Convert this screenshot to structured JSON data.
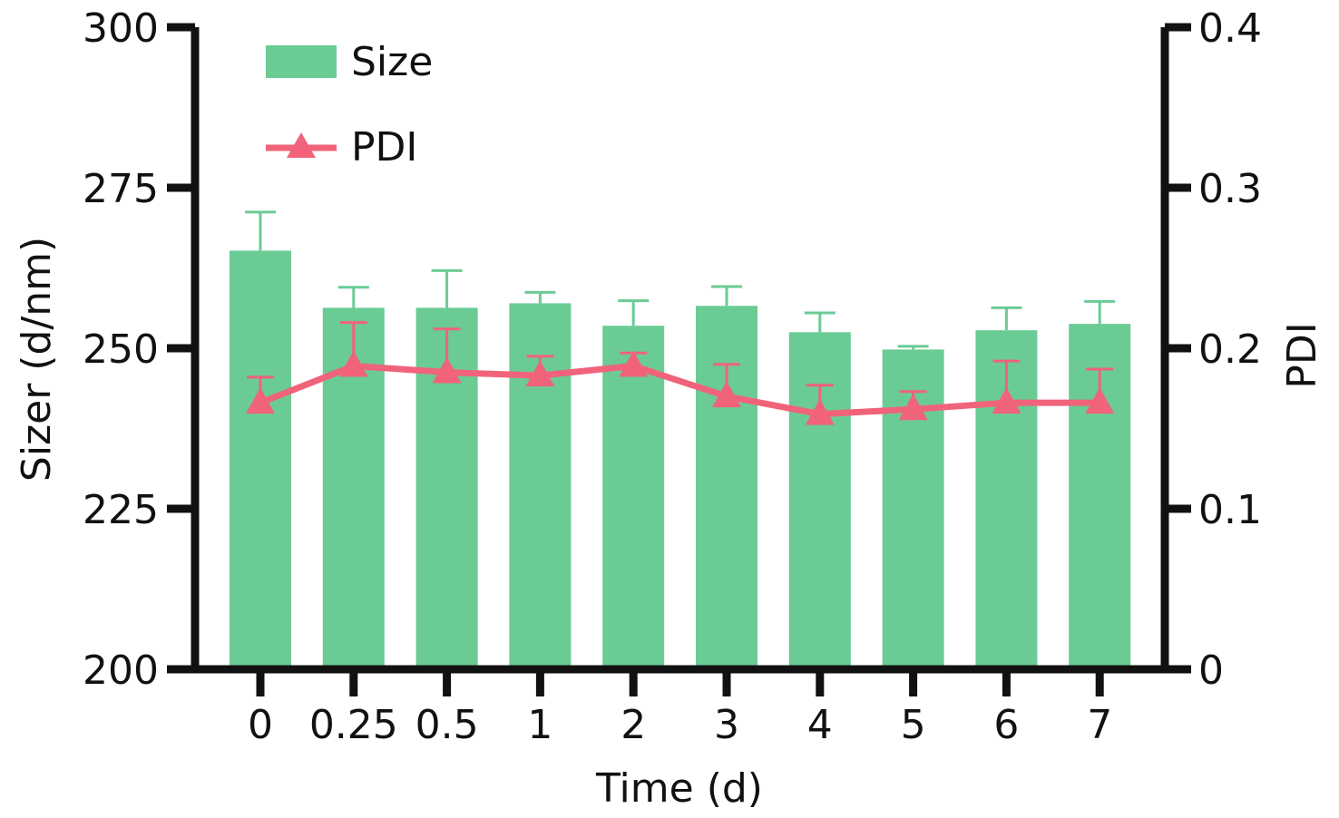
{
  "chart_data": {
    "type": "bar",
    "xlabel": "Time (d)",
    "ylabel": "Sizer (d/nm)",
    "y2label": "PDI",
    "categories": [
      "0",
      "0.25",
      "0.5",
      "1",
      "2",
      "3",
      "4",
      "5",
      "6",
      "7"
    ],
    "ylim": [
      200,
      300
    ],
    "y2lim": [
      0,
      0.4
    ],
    "yticks": [
      "200",
      "225",
      "250",
      "275",
      "300"
    ],
    "y2ticks": [
      "0",
      "0.1",
      "0.2",
      "0.3",
      "0.4"
    ],
    "legend_position": "top-left",
    "grid": false,
    "series": [
      {
        "name": "Size",
        "type": "bar",
        "axis": "left",
        "color": "#6bcb95",
        "values": [
          265.2,
          256.3,
          256.3,
          257.0,
          253.5,
          256.6,
          252.5,
          249.8,
          252.8,
          253.8
        ],
        "errors": [
          6.0,
          3.2,
          5.8,
          1.7,
          3.9,
          3.0,
          3.0,
          0.5,
          3.5,
          3.5
        ]
      },
      {
        "name": "PDI",
        "type": "line",
        "axis": "right",
        "marker": "triangle",
        "color": "#f0637a",
        "values": [
          0.166,
          0.189,
          0.185,
          0.183,
          0.189,
          0.17,
          0.159,
          0.162,
          0.166,
          0.166
        ],
        "errors": [
          0.016,
          0.027,
          0.027,
          0.012,
          0.008,
          0.02,
          0.018,
          0.011,
          0.026,
          0.021
        ]
      }
    ]
  }
}
